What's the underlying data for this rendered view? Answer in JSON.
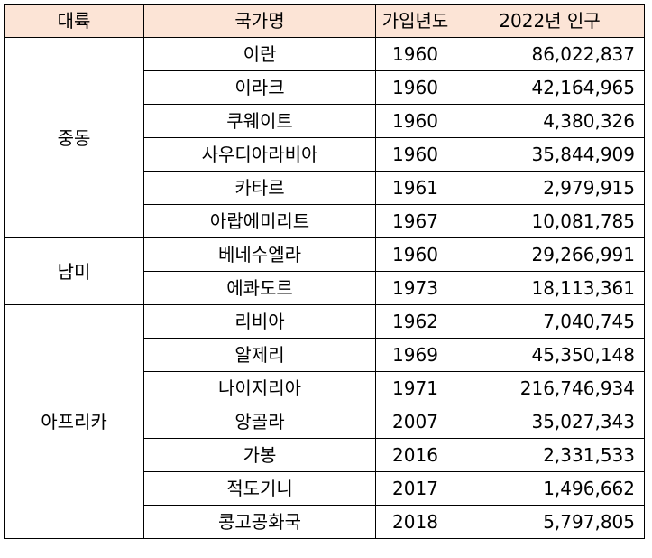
{
  "header": {
    "region": "대륙",
    "country": "국가명",
    "year": "가입년도",
    "population": "2022년 인구"
  },
  "groups": [
    {
      "region": "중동",
      "rows": [
        {
          "country": "이란",
          "year": "1960",
          "population": "86,022,837"
        },
        {
          "country": "이라크",
          "year": "1960",
          "population": "42,164,965"
        },
        {
          "country": "쿠웨이트",
          "year": "1960",
          "population": "4,380,326"
        },
        {
          "country": "사우디아라비아",
          "year": "1960",
          "population": "35,844,909"
        },
        {
          "country": "카타르",
          "year": "1961",
          "population": "2,979,915"
        },
        {
          "country": "아랍에미리트",
          "year": "1967",
          "population": "10,081,785"
        }
      ]
    },
    {
      "region": "남미",
      "rows": [
        {
          "country": "베네수엘라",
          "year": "1960",
          "population": "29,266,991"
        },
        {
          "country": "에콰도르",
          "year": "1973",
          "population": "18,113,361"
        }
      ]
    },
    {
      "region": "아프리카",
      "rows": [
        {
          "country": "리비아",
          "year": "1962",
          "population": "7,040,745"
        },
        {
          "country": "알제리",
          "year": "1969",
          "population": "45,350,148"
        },
        {
          "country": "나이지리아",
          "year": "1971",
          "population": "216,746,934"
        },
        {
          "country": "앙골라",
          "year": "2007",
          "population": "35,027,343"
        },
        {
          "country": "가봉",
          "year": "2016",
          "population": "2,331,533"
        },
        {
          "country": "적도기니",
          "year": "2017",
          "population": "1,496,662"
        },
        {
          "country": "콩고공화국",
          "year": "2018",
          "population": "5,797,805"
        }
      ]
    }
  ]
}
